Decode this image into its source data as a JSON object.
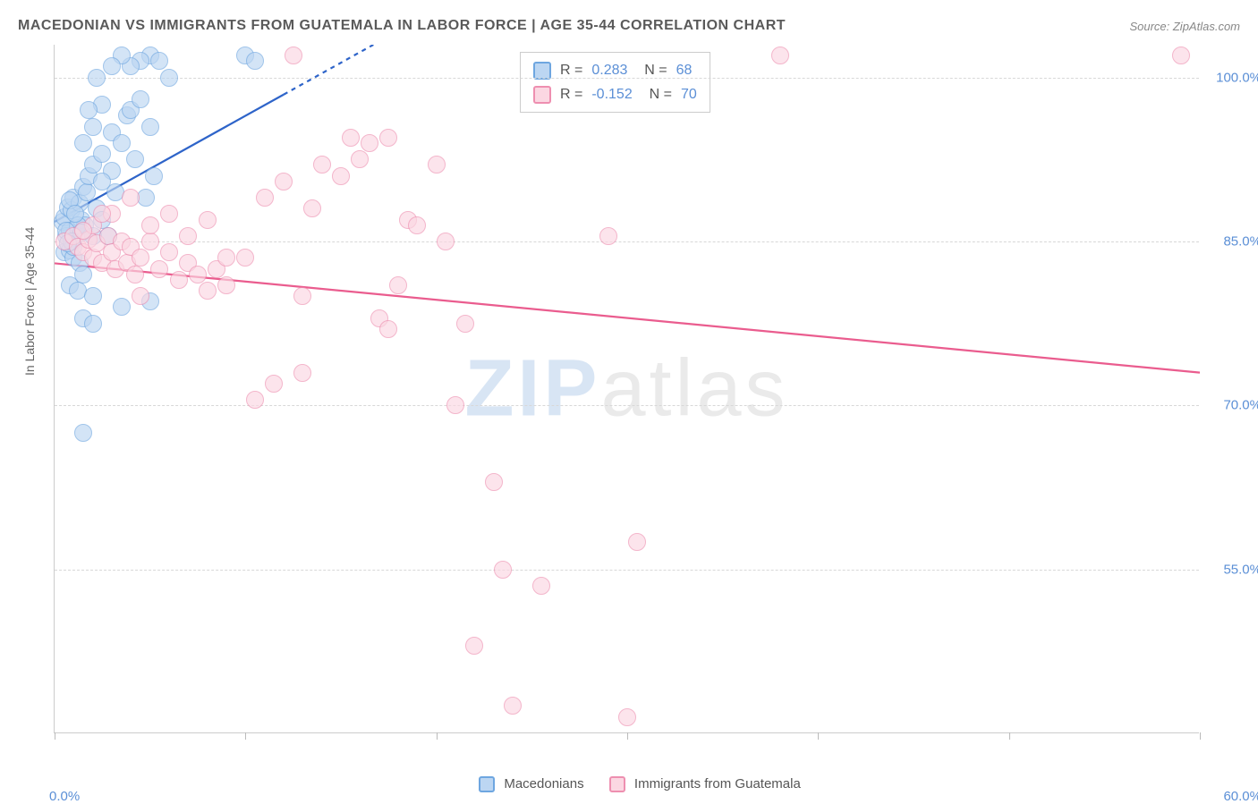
{
  "header": {
    "title": "MACEDONIAN VS IMMIGRANTS FROM GUATEMALA IN LABOR FORCE | AGE 35-44 CORRELATION CHART",
    "source": "Source: ZipAtlas.com"
  },
  "watermark": {
    "bold": "ZIP",
    "rest": "atlas"
  },
  "chart": {
    "type": "scatter",
    "y_axis_title": "In Labor Force | Age 35-44",
    "xlim": [
      0,
      60
    ],
    "ylim": [
      40,
      103
    ],
    "x_ticks": [
      0,
      10,
      20,
      30,
      40,
      50,
      60
    ],
    "x_tick_labels": {
      "start": "0.0%",
      "end": "60.0%"
    },
    "y_grid": [
      55,
      70,
      85,
      100
    ],
    "y_tick_labels": {
      "55": "55.0%",
      "70": "70.0%",
      "85": "85.0%",
      "100": "100.0%"
    },
    "background_color": "#ffffff",
    "grid_color": "#d8d8d8",
    "axis_color": "#cccccc",
    "label_color": "#5b8fd6",
    "font_size_labels": 15,
    "font_size_title": 16,
    "series": [
      {
        "name": "Macedonians",
        "color_fill": "#bcd6f2",
        "color_stroke": "#6ea6e0",
        "opacity": 0.65,
        "marker_radius": 10,
        "trend": {
          "type": "linear",
          "y0": 86.8,
          "y60": 145,
          "color": "#2e64c9",
          "width": 2.2,
          "solid_until_x": 12,
          "dash": "5,5"
        },
        "stats": {
          "R": "0.283",
          "N": "68"
        },
        "points": [
          [
            0.4,
            86.8
          ],
          [
            0.5,
            87.2
          ],
          [
            0.6,
            85.5
          ],
          [
            0.7,
            88.1
          ],
          [
            0.8,
            86.0
          ],
          [
            0.9,
            87.9
          ],
          [
            1.0,
            85.0
          ],
          [
            1.0,
            89.0
          ],
          [
            1.2,
            86.2
          ],
          [
            1.3,
            88.5
          ],
          [
            1.4,
            87.0
          ],
          [
            1.5,
            90.0
          ],
          [
            1.6,
            86.5
          ],
          [
            1.7,
            89.5
          ],
          [
            1.8,
            91.0
          ],
          [
            0.5,
            84.0
          ],
          [
            0.8,
            84.2
          ],
          [
            1.0,
            83.5
          ],
          [
            1.3,
            83.0
          ],
          [
            1.5,
            82.0
          ],
          [
            0.8,
            81.0
          ],
          [
            1.2,
            80.5
          ],
          [
            2.0,
            80.0
          ],
          [
            2.2,
            88.0
          ],
          [
            2.5,
            87.0
          ],
          [
            2.8,
            85.5
          ],
          [
            2.0,
            92.0
          ],
          [
            2.5,
            93.0
          ],
          [
            3.0,
            91.5
          ],
          [
            3.0,
            95.0
          ],
          [
            3.5,
            94.0
          ],
          [
            3.8,
            96.5
          ],
          [
            4.0,
            97.0
          ],
          [
            4.2,
            92.5
          ],
          [
            4.5,
            98.0
          ],
          [
            5.0,
            95.5
          ],
          [
            5.0,
            102.0
          ],
          [
            5.5,
            101.5
          ],
          [
            6.0,
            100.0
          ],
          [
            5.2,
            91.0
          ],
          [
            4.8,
            89.0
          ],
          [
            3.2,
            89.5
          ],
          [
            2.5,
            90.5
          ],
          [
            2.0,
            85.5
          ],
          [
            1.5,
            78.0
          ],
          [
            2.0,
            77.5
          ],
          [
            3.5,
            79.0
          ],
          [
            5.0,
            79.5
          ],
          [
            10.0,
            102.0
          ],
          [
            10.5,
            101.5
          ],
          [
            4.5,
            101.5
          ],
          [
            4.0,
            101.0
          ],
          [
            3.5,
            102.0
          ],
          [
            3.0,
            101.0
          ],
          [
            2.5,
            97.5
          ],
          [
            2.0,
            95.5
          ],
          [
            1.5,
            94.0
          ],
          [
            1.8,
            97.0
          ],
          [
            2.2,
            100.0
          ],
          [
            1.2,
            86.5
          ],
          [
            0.6,
            86.0
          ],
          [
            0.8,
            88.8
          ],
          [
            1.0,
            84.5
          ],
          [
            1.5,
            67.5
          ],
          [
            1.4,
            85.8
          ],
          [
            0.9,
            85.0
          ],
          [
            0.7,
            84.8
          ],
          [
            1.1,
            87.5
          ]
        ]
      },
      {
        "name": "Immigrants from Guatemala",
        "color_fill": "#fbd7e2",
        "color_stroke": "#ee8fb0",
        "opacity": 0.65,
        "marker_radius": 10,
        "trend": {
          "type": "linear",
          "y0": 83.0,
          "y60": 73.0,
          "color": "#ea5c8e",
          "width": 2.2
        },
        "stats": {
          "R": "-0.152",
          "N": "70"
        },
        "points": [
          [
            0.5,
            85.0
          ],
          [
            1.0,
            85.5
          ],
          [
            1.2,
            84.5
          ],
          [
            1.5,
            84.0
          ],
          [
            1.8,
            85.2
          ],
          [
            2.0,
            83.5
          ],
          [
            2.2,
            84.8
          ],
          [
            2.5,
            83.0
          ],
          [
            2.8,
            85.5
          ],
          [
            3.0,
            84.0
          ],
          [
            3.2,
            82.5
          ],
          [
            3.5,
            85.0
          ],
          [
            3.8,
            83.0
          ],
          [
            4.0,
            84.5
          ],
          [
            4.2,
            82.0
          ],
          [
            4.5,
            83.5
          ],
          [
            5.0,
            85.0
          ],
          [
            5.5,
            82.5
          ],
          [
            6.0,
            84.0
          ],
          [
            6.5,
            81.5
          ],
          [
            7.0,
            83.0
          ],
          [
            7.5,
            82.0
          ],
          [
            8.0,
            80.5
          ],
          [
            8.5,
            82.5
          ],
          [
            9.0,
            81.0
          ],
          [
            10.0,
            83.5
          ],
          [
            11.0,
            89.0
          ],
          [
            12.0,
            90.5
          ],
          [
            12.5,
            102.0
          ],
          [
            13.0,
            80.0
          ],
          [
            13.5,
            88.0
          ],
          [
            14.0,
            92.0
          ],
          [
            15.0,
            91.0
          ],
          [
            16.0,
            92.5
          ],
          [
            17.0,
            78.0
          ],
          [
            17.5,
            77.0
          ],
          [
            18.0,
            81.0
          ],
          [
            18.5,
            87.0
          ],
          [
            19.0,
            86.5
          ],
          [
            20.0,
            92.0
          ],
          [
            20.5,
            85.0
          ],
          [
            21.0,
            70.0
          ],
          [
            21.5,
            77.5
          ],
          [
            22.0,
            48.0
          ],
          [
            23.0,
            63.0
          ],
          [
            23.5,
            55.0
          ],
          [
            24.0,
            42.5
          ],
          [
            25.5,
            53.5
          ],
          [
            29.0,
            85.5
          ],
          [
            30.0,
            41.5
          ],
          [
            30.5,
            57.5
          ],
          [
            38.0,
            102.0
          ],
          [
            59.0,
            102.0
          ],
          [
            3.0,
            87.5
          ],
          [
            4.0,
            89.0
          ],
          [
            5.0,
            86.5
          ],
          [
            6.0,
            87.5
          ],
          [
            7.0,
            85.5
          ],
          [
            8.0,
            87.0
          ],
          [
            9.0,
            83.5
          ],
          [
            15.5,
            94.5
          ],
          [
            16.5,
            94.0
          ],
          [
            17.5,
            94.5
          ],
          [
            10.5,
            70.5
          ],
          [
            11.5,
            72.0
          ],
          [
            13.0,
            73.0
          ],
          [
            2.0,
            86.5
          ],
          [
            2.5,
            87.5
          ],
          [
            1.5,
            86.0
          ],
          [
            4.5,
            80.0
          ]
        ]
      }
    ]
  },
  "legend_bottom": [
    {
      "label": "Macedonians",
      "fill": "#bcd6f2",
      "stroke": "#6ea6e0"
    },
    {
      "label": "Immigrants from Guatemala",
      "fill": "#fbd7e2",
      "stroke": "#ee8fb0"
    }
  ]
}
